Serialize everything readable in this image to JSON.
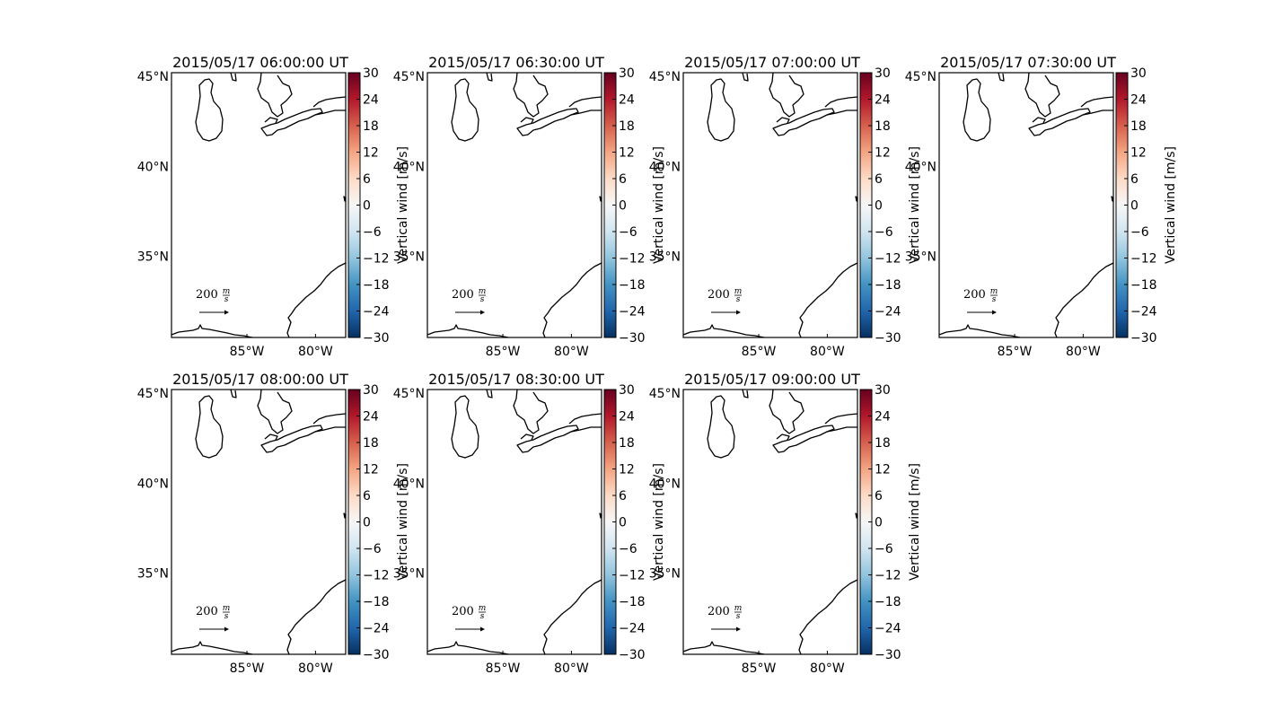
{
  "chart_data": {
    "type": "map-panels",
    "variable_label": "Vertical wind [m/s]",
    "colorbar": {
      "range": [
        -30,
        30
      ],
      "ticks": [
        -30,
        -24,
        -18,
        -12,
        -6,
        0,
        6,
        12,
        18,
        24,
        30
      ],
      "colormap": "RdBu_r",
      "colors": [
        "#053061",
        "#2166ac",
        "#4393c3",
        "#92c5de",
        "#d1e5f0",
        "#f7f7f7",
        "#fddbc7",
        "#f4a582",
        "#d6604d",
        "#b2182b",
        "#67001f"
      ]
    },
    "x_ticks": [
      {
        "value": -85,
        "label": "85°W"
      },
      {
        "value": -80,
        "label": "80°W"
      }
    ],
    "y_ticks": [
      {
        "value": 45,
        "label": "45°N"
      },
      {
        "value": 40,
        "label": "40°N"
      },
      {
        "value": 35,
        "label": "35°N"
      }
    ],
    "lon_range": [
      -90.5,
      -77.8
    ],
    "lat_range": [
      30.5,
      45.2
    ],
    "reference_arrow": {
      "value": 200,
      "unit_numerator": "m",
      "unit_denominator": "s"
    },
    "panels": [
      {
        "title": "2015/05/17 06:00:00 UT"
      },
      {
        "title": "2015/05/17 06:30:00 UT"
      },
      {
        "title": "2015/05/17 07:00:00 UT"
      },
      {
        "title": "2015/05/17 07:30:00 UT"
      },
      {
        "title": "2015/05/17 08:00:00 UT"
      },
      {
        "title": "2015/05/17 08:30:00 UT"
      },
      {
        "title": "2015/05/17 09:00:00 UT"
      }
    ]
  }
}
